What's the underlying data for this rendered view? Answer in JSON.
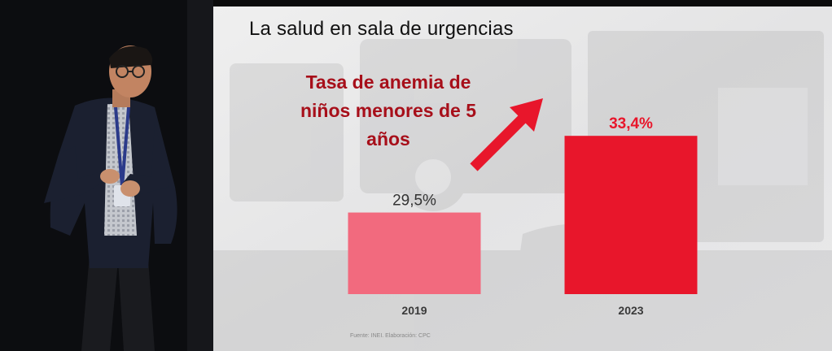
{
  "slide": {
    "title": "La salud en sala de urgencias",
    "highlight": "Tasa de anemia de niños menores de 5 años",
    "source": "Fuente: INEI. Elaboración: CPC"
  },
  "chart_data": {
    "type": "bar",
    "categories": [
      "2019",
      "2023"
    ],
    "values": [
      29.5,
      33.4
    ],
    "value_labels": [
      "29,5%",
      "33,4%"
    ],
    "bar_colors": [
      "#f26a7e",
      "#e8162b"
    ],
    "value_label_colors": [
      "#333333",
      "#e8162b"
    ],
    "title": "",
    "xlabel": "",
    "ylabel": "",
    "grid": false
  },
  "colors": {
    "accent": "#a70f1a",
    "arrow": "#e8162b"
  }
}
